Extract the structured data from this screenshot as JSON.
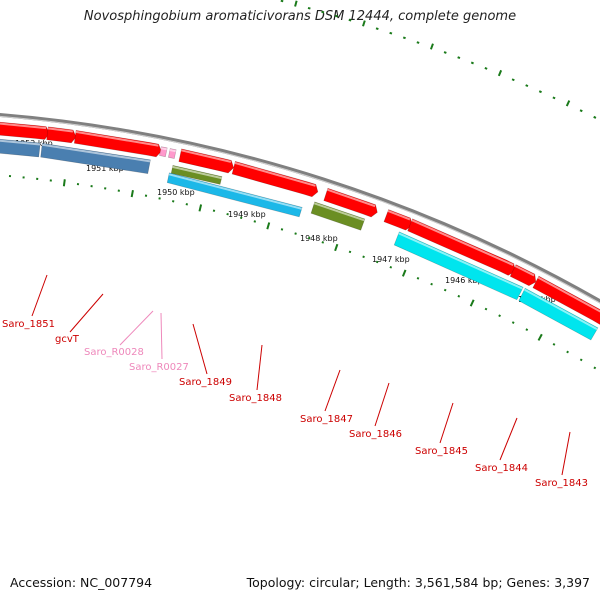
{
  "title": "Novosphingobium aromaticivorans DSM 12444, complete genome",
  "footer": {
    "accession": "Accession: NC_007794",
    "summary": "Topology: circular; Length: 3,561,584 bp; Genes: 3,397"
  },
  "scale_labels": [
    "1952 kbp",
    "1951 kbp",
    "1950 kbp",
    "1949 kbp",
    "1948 kbp",
    "1947 kbp",
    "1946 kbp",
    "1945 kbp"
  ],
  "colors": {
    "gene_red": "#ff0000",
    "cds_steelblue": "#4a7fb0",
    "cds_olive": "#6b8e23",
    "cds_cyan": "#00e5ee",
    "cds_deepskyblue": "#1cb8e8",
    "rna_pink": "#ff99cc",
    "label_red": "#cc0000",
    "label_pink": "#ee88bb",
    "tick_green": "#1a7a1a",
    "backbone_gray": "#808080"
  },
  "gene_labels": [
    {
      "name": "Saro_1851",
      "kind": "gene"
    },
    {
      "name": "gcvT",
      "kind": "gene"
    },
    {
      "name": "Saro_R0028",
      "kind": "rna"
    },
    {
      "name": "Saro_R0027",
      "kind": "rna"
    },
    {
      "name": "Saro_1849",
      "kind": "gene"
    },
    {
      "name": "Saro_1848",
      "kind": "gene"
    },
    {
      "name": "Saro_1847",
      "kind": "gene"
    },
    {
      "name": "Saro_1846",
      "kind": "gene"
    },
    {
      "name": "Saro_1845",
      "kind": "gene"
    },
    {
      "name": "Saro_1844",
      "kind": "gene"
    },
    {
      "name": "Saro_1843",
      "kind": "gene"
    }
  ]
}
